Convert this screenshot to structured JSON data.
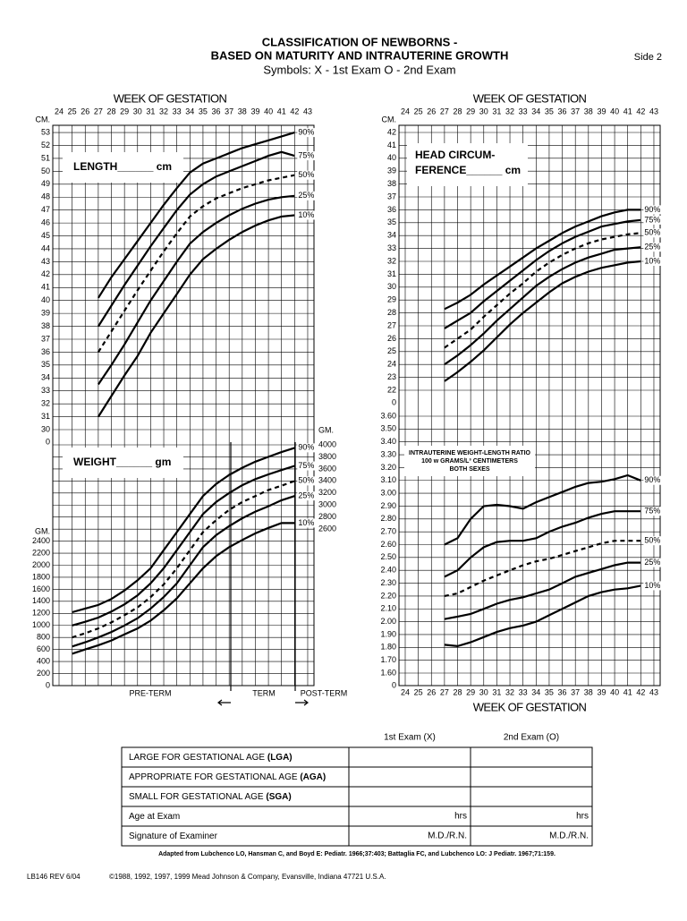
{
  "header": {
    "title_line1": "CLASSIFICATION OF NEWBORNS -",
    "title_line2": "BASED ON MATURITY AND INTRAUTERINE GROWTH",
    "symbols": "Symbols:  X - 1st Exam  O - 2nd Exam",
    "side": "Side 2"
  },
  "axis_title": "WEEK OF GESTATION",
  "weeks": [
    24,
    25,
    26,
    27,
    28,
    29,
    30,
    31,
    32,
    33,
    34,
    35,
    36,
    37,
    38,
    39,
    40,
    41,
    42,
    43
  ],
  "length": {
    "box_label": "LENGTH______ cm",
    "unit": "CM.",
    "axis_break_label": "0",
    "yticks": [
      30,
      31,
      32,
      33,
      34,
      35,
      36,
      37,
      38,
      39,
      40,
      41,
      42,
      43,
      44,
      45,
      46,
      47,
      48,
      49,
      50,
      51,
      52,
      53
    ],
    "x": [
      27,
      28,
      29,
      30,
      31,
      32,
      33,
      34,
      35,
      36,
      37,
      38,
      39,
      40,
      41,
      42
    ],
    "series": [
      {
        "name": "90%",
        "color": "#000",
        "dashed": false,
        "values": [
          40.2,
          41.8,
          43.2,
          44.6,
          46.0,
          47.4,
          48.7,
          49.9,
          50.6,
          51.0,
          51.4,
          51.8,
          52.1,
          52.4,
          52.7,
          53.0
        ]
      },
      {
        "name": "75%",
        "color": "#000",
        "dashed": false,
        "values": [
          38.0,
          39.6,
          41.2,
          42.7,
          44.2,
          45.6,
          47.0,
          48.2,
          49.0,
          49.6,
          50.0,
          50.4,
          50.8,
          51.2,
          51.5,
          51.2
        ]
      },
      {
        "name": "50%",
        "color": "#000",
        "dashed": true,
        "values": [
          36.0,
          37.6,
          39.2,
          40.8,
          42.3,
          43.8,
          45.2,
          46.5,
          47.3,
          47.9,
          48.3,
          48.7,
          49.0,
          49.3,
          49.5,
          49.7
        ]
      },
      {
        "name": "25%",
        "color": "#000",
        "dashed": false,
        "values": [
          33.5,
          35.0,
          36.6,
          38.3,
          40.0,
          41.5,
          43.0,
          44.4,
          45.3,
          46.0,
          46.6,
          47.1,
          47.5,
          47.8,
          48.0,
          48.1
        ]
      },
      {
        "name": "10%",
        "color": "#000",
        "dashed": false,
        "values": [
          31.0,
          32.6,
          34.2,
          35.7,
          37.5,
          39.0,
          40.5,
          42.0,
          43.2,
          44.0,
          44.7,
          45.3,
          45.8,
          46.2,
          46.5,
          46.6
        ]
      }
    ]
  },
  "weight": {
    "box_label": "WEIGHT______ gm",
    "unit": "GM.",
    "yticks_left": [
      0,
      200,
      400,
      600,
      800,
      1000,
      1200,
      1400,
      1600,
      1800,
      2000,
      2200,
      2400
    ],
    "yticks_right": [
      2600,
      2800,
      3000,
      3200,
      3400,
      3600,
      3800,
      4000
    ],
    "x": [
      25,
      26,
      27,
      28,
      29,
      30,
      31,
      32,
      33,
      34,
      35,
      36,
      37,
      38,
      39,
      40,
      41,
      42
    ],
    "series": [
      {
        "name": "90%",
        "color": "#000",
        "dashed": false,
        "values": [
          1220,
          1280,
          1340,
          1440,
          1580,
          1750,
          1950,
          2250,
          2550,
          2850,
          3150,
          3350,
          3500,
          3620,
          3720,
          3800,
          3880,
          3950
        ]
      },
      {
        "name": "75%",
        "color": "#000",
        "dashed": false,
        "values": [
          1000,
          1060,
          1130,
          1230,
          1350,
          1500,
          1700,
          1950,
          2250,
          2550,
          2850,
          3050,
          3200,
          3330,
          3430,
          3510,
          3580,
          3650
        ]
      },
      {
        "name": "50%",
        "color": "#000",
        "dashed": true,
        "values": [
          800,
          870,
          950,
          1050,
          1170,
          1300,
          1470,
          1680,
          1950,
          2250,
          2550,
          2750,
          2920,
          3050,
          3150,
          3250,
          3320,
          3400
        ]
      },
      {
        "name": "25%",
        "color": "#000",
        "dashed": false,
        "values": [
          650,
          720,
          800,
          890,
          1000,
          1120,
          1280,
          1470,
          1700,
          2000,
          2300,
          2500,
          2650,
          2780,
          2890,
          2980,
          3080,
          3150
        ]
      },
      {
        "name": "10%",
        "color": "#000",
        "dashed": false,
        "values": [
          530,
          600,
          670,
          750,
          850,
          950,
          1080,
          1250,
          1450,
          1700,
          1950,
          2150,
          2300,
          2420,
          2530,
          2620,
          2700,
          2700
        ]
      }
    ],
    "term_labels": {
      "pre": "PRE-TERM",
      "term": "TERM",
      "post": "POST-TERM"
    }
  },
  "head": {
    "box_label_line1": "HEAD CIRCUM-",
    "box_label_line2": "FERENCE______ cm",
    "unit": "CM.",
    "axis_break_label": "0",
    "yticks": [
      22,
      23,
      24,
      25,
      26,
      27,
      28,
      29,
      30,
      31,
      32,
      33,
      34,
      35,
      36,
      37,
      38,
      39,
      40,
      41,
      42
    ],
    "x": [
      27,
      28,
      29,
      30,
      31,
      32,
      33,
      34,
      35,
      36,
      37,
      38,
      39,
      40,
      41,
      42
    ],
    "series": [
      {
        "name": "90%",
        "color": "#000",
        "dashed": false,
        "values": [
          28.3,
          28.8,
          29.4,
          30.2,
          30.9,
          31.6,
          32.3,
          33.0,
          33.6,
          34.2,
          34.7,
          35.1,
          35.5,
          35.8,
          36.0,
          36.0
        ]
      },
      {
        "name": "75%",
        "color": "#000",
        "dashed": false,
        "values": [
          26.8,
          27.4,
          28.0,
          28.9,
          29.7,
          30.5,
          31.3,
          32.1,
          32.8,
          33.4,
          33.9,
          34.3,
          34.7,
          34.9,
          35.1,
          35.2
        ]
      },
      {
        "name": "50%",
        "color": "#000",
        "dashed": true,
        "values": [
          25.3,
          26.0,
          26.7,
          27.7,
          28.6,
          29.5,
          30.3,
          31.2,
          31.9,
          32.5,
          33.0,
          33.4,
          33.7,
          33.9,
          34.1,
          34.2
        ]
      },
      {
        "name": "25%",
        "color": "#000",
        "dashed": false,
        "values": [
          24.0,
          24.7,
          25.5,
          26.4,
          27.4,
          28.3,
          29.2,
          30.1,
          30.8,
          31.4,
          31.9,
          32.3,
          32.6,
          32.9,
          33.0,
          33.1
        ]
      },
      {
        "name": "10%",
        "color": "#000",
        "dashed": false,
        "values": [
          22.7,
          23.4,
          24.2,
          25.1,
          26.1,
          27.1,
          28.0,
          28.8,
          29.6,
          30.3,
          30.8,
          31.2,
          31.5,
          31.7,
          31.9,
          32.0
        ]
      }
    ]
  },
  "ratio": {
    "box_line1": "INTRAUTERINE WEIGHT-LENGTH RATIO",
    "box_line2": "100 w GRAMS/L³ CENTIMETERS",
    "box_line3": "BOTH SEXES",
    "axis_break_label": "0",
    "yticks": [
      {
        "value": 1.6,
        "label": "1.60"
      },
      {
        "value": 1.7,
        "label": "1.70"
      },
      {
        "value": 1.8,
        "label": "1.80"
      },
      {
        "value": 1.9,
        "label": "1.90"
      },
      {
        "value": 2.0,
        "label": "2.00"
      },
      {
        "value": 2.1,
        "label": "2.10"
      },
      {
        "value": 2.2,
        "label": "2.20"
      },
      {
        "value": 2.3,
        "label": "2.30"
      },
      {
        "value": 2.4,
        "label": "2.40"
      },
      {
        "value": 2.5,
        "label": "2.50"
      },
      {
        "value": 2.6,
        "label": "2.60"
      },
      {
        "value": 2.7,
        "label": "2.70"
      },
      {
        "value": 2.8,
        "label": "2.80"
      },
      {
        "value": 2.9,
        "label": "2.90"
      },
      {
        "value": 3.0,
        "label": "3.00"
      },
      {
        "value": 3.1,
        "label": "3.10"
      },
      {
        "value": 3.2,
        "label": "3.20"
      },
      {
        "value": 3.3,
        "label": "3.30"
      },
      {
        "value": 3.4,
        "label": "3.40"
      },
      {
        "value": 3.5,
        "label": "3.50"
      },
      {
        "value": 3.6,
        "label": "3.60"
      }
    ],
    "x": [
      27,
      28,
      29,
      30,
      31,
      32,
      33,
      34,
      35,
      36,
      37,
      38,
      39,
      40,
      41,
      42
    ],
    "series": [
      {
        "name": "90%",
        "color": "#000",
        "dashed": false,
        "values": [
          2.6,
          2.65,
          2.8,
          2.9,
          2.91,
          2.9,
          2.88,
          2.93,
          2.97,
          3.01,
          3.05,
          3.08,
          3.09,
          3.11,
          3.14,
          3.1
        ]
      },
      {
        "name": "75%",
        "color": "#000",
        "dashed": false,
        "values": [
          2.35,
          2.4,
          2.5,
          2.58,
          2.62,
          2.63,
          2.63,
          2.65,
          2.7,
          2.74,
          2.77,
          2.81,
          2.84,
          2.86,
          2.86,
          2.86
        ]
      },
      {
        "name": "50%",
        "color": "#000",
        "dashed": true,
        "values": [
          2.2,
          2.22,
          2.27,
          2.32,
          2.36,
          2.4,
          2.44,
          2.47,
          2.49,
          2.52,
          2.55,
          2.58,
          2.61,
          2.63,
          2.63,
          2.63
        ]
      },
      {
        "name": "25%",
        "color": "#000",
        "dashed": false,
        "values": [
          2.02,
          2.04,
          2.06,
          2.1,
          2.14,
          2.17,
          2.19,
          2.22,
          2.25,
          2.3,
          2.35,
          2.38,
          2.41,
          2.44,
          2.46,
          2.46
        ]
      },
      {
        "name": "10%",
        "color": "#000",
        "dashed": false,
        "values": [
          1.82,
          1.81,
          1.84,
          1.88,
          1.92,
          1.95,
          1.97,
          2.0,
          2.05,
          2.1,
          2.15,
          2.2,
          2.23,
          2.25,
          2.26,
          2.28
        ]
      }
    ]
  },
  "table": {
    "columns": [
      "1st Exam (X)",
      "2nd Exam (O)"
    ],
    "rows": [
      {
        "label": "LARGE FOR GESTATIONAL AGE ",
        "abbr": "(LGA)",
        "cells": [
          "",
          ""
        ]
      },
      {
        "label": "APPROPRIATE FOR GESTATIONAL AGE ",
        "abbr": "(AGA)",
        "cells": [
          "",
          ""
        ]
      },
      {
        "label": "SMALL FOR GESTATIONAL AGE ",
        "abbr": "(SGA)",
        "cells": [
          "",
          ""
        ]
      },
      {
        "label": "Age at Exam",
        "abbr": "",
        "cells": [
          "hrs",
          "hrs"
        ]
      },
      {
        "label": "Signature of Examiner",
        "abbr": "",
        "cells": [
          "M.D./R.N.",
          "M.D./R.N."
        ]
      }
    ],
    "footnote": "Adapted from Lubchenco LO, Hansman C, and Boyd E: Pediatr. 1966;37:403; Battaglia FC, and Lubchenco LO: J Pediatr. 1967;71:159."
  },
  "footer": {
    "form_id": "LB146 REV 6/04",
    "copyright": "©1988, 1992, 1997, 1999 Mead Johnson & Company, Evansville, Indiana 47721 U.S.A."
  }
}
